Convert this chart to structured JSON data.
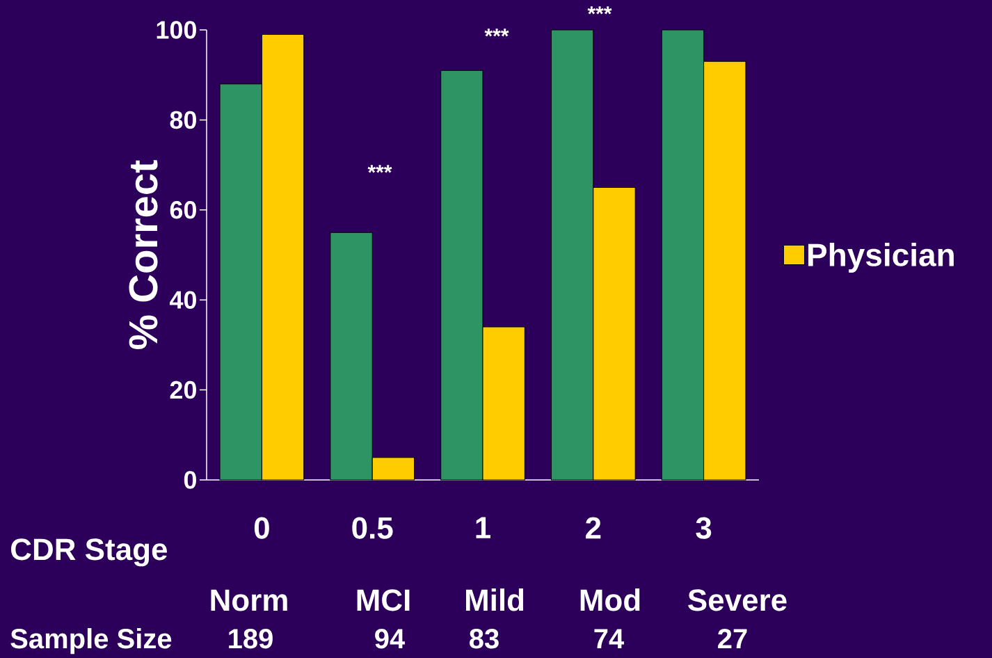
{
  "chart_data": {
    "type": "bar",
    "xlabel": "CDR Stage",
    "ylabel": "% Correct",
    "categories": [
      "0",
      "0.5",
      "1",
      "2",
      "3"
    ],
    "series": [
      {
        "color": "#2e9464",
        "values": [
          88,
          55,
          91,
          100,
          100
        ]
      },
      {
        "name": "Physician",
        "color": "#ffcc00",
        "values": [
          99,
          5,
          34,
          65,
          93
        ]
      }
    ],
    "ylim": [
      0,
      100
    ],
    "yticks": [
      0,
      20,
      40,
      60,
      80,
      100
    ],
    "legend": "right",
    "annotations": [
      "***",
      "***",
      "***",
      "Norm",
      "MCI",
      "Mild",
      "Mod",
      "Severe",
      "Sample Size",
      "189",
      "94",
      "83",
      "74",
      "27"
    ]
  }
}
